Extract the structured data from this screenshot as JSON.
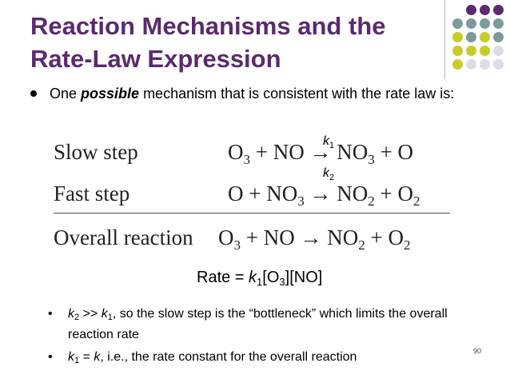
{
  "title": {
    "line1": "Reaction Mechanisms and the",
    "line2": "Rate-Law Expression"
  },
  "decoration": {
    "dot_colors": [
      [
        "#5b2a6e",
        "#5b2a6e",
        "#5b2a6e"
      ],
      [
        "#7e9a9a",
        "#7e9a9a",
        "#7e9a9a",
        "#7e9a9a"
      ],
      [
        "#c8cc2a",
        "#7e9a9a",
        "#c8cc2a",
        "#7e9a9a"
      ],
      [
        "#c8cc2a",
        "#c8cc2a",
        "#c8cc2a",
        "#dcdce8"
      ],
      [
        "#c8cc2a",
        "#dcdce8",
        "#dcdce8",
        "#dcdce8"
      ]
    ]
  },
  "bullet_main": {
    "before": "One ",
    "emphasis": "possible",
    "after": " mechanism that is consistent with the rate law is:"
  },
  "mechanism": {
    "slow_label": "Slow step",
    "fast_label": "Fast step",
    "overall_label": "Overall reaction",
    "k1": {
      "letter": "k",
      "sub": "1"
    },
    "k2": {
      "letter": "k",
      "sub": "2"
    },
    "slow": {
      "a": "O",
      "a_sub": "3",
      "b": " + NO ",
      "arrow": "→",
      "c": " NO",
      "c_sub": "3",
      "d": " + O"
    },
    "fast": {
      "a": "O + NO",
      "a_sub": "3",
      "arrow": " → ",
      "c": "NO",
      "c_sub": "2",
      "d": " + O",
      "d_sub": "2"
    },
    "overall": {
      "a": "O",
      "a_sub": "3",
      "b": " + NO ",
      "arrow": "→",
      "c": " NO",
      "c_sub": "2",
      "d": " + O",
      "d_sub": "2"
    }
  },
  "rate_law": {
    "prefix": "Rate = ",
    "k": "k",
    "k_sub": "1",
    "o3_open": "[O",
    "o3_sub": "3",
    "rest": "][NO]"
  },
  "notes": [
    {
      "marker": "•",
      "k_a": "k",
      "k_a_sub": "2",
      "mid": " >> ",
      "k_b": "k",
      "k_b_sub": "1",
      "text": ", so the slow step is the “bottleneck” which limits the overall reaction rate"
    },
    {
      "marker": "•",
      "k_a": "k",
      "k_a_sub": "1",
      "mid": " = ",
      "k_b": "k",
      "text": ", i.e., the rate constant for the overall reaction"
    }
  ],
  "page_number": "90"
}
